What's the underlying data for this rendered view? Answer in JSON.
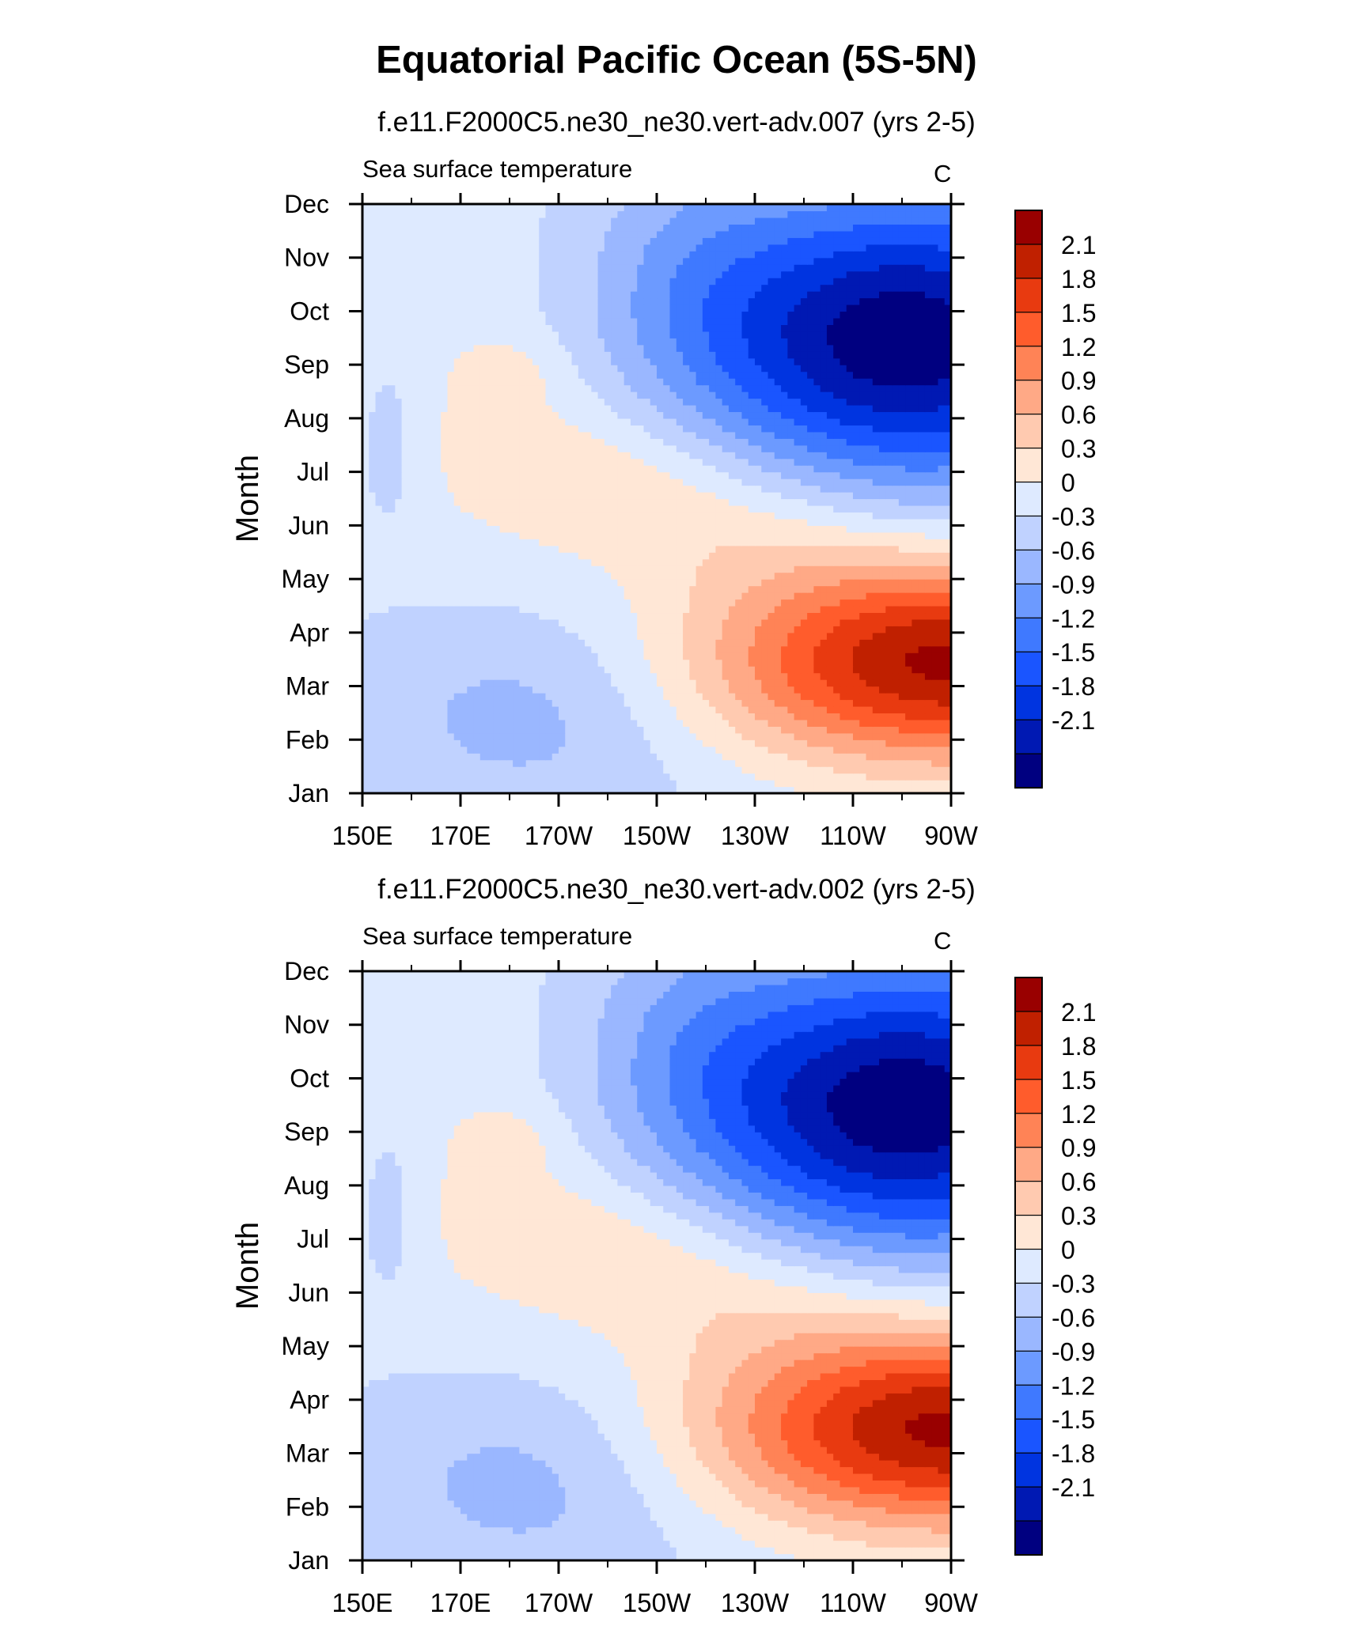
{
  "title": "Equatorial Pacific Ocean (5S-5N)",
  "colors": {
    "levels": [
      "#000080",
      "#0019b3",
      "#0034e0",
      "#1a55ff",
      "#3f79ff",
      "#6c9aff",
      "#9ab7ff",
      "#c0d2ff",
      "#deeaff",
      "#ffe7d6",
      "#ffcab0",
      "#ffa986",
      "#ff8356",
      "#ff5c2c",
      "#e83a10",
      "#c02000",
      "#990000"
    ],
    "contour_labels": [
      "-2.1",
      "-1.8",
      "-1.5",
      "-1.2",
      "-0.9",
      "-0.6",
      "-0.3",
      "0",
      "0.3",
      "0.6",
      "0.9",
      "1.2",
      "1.5",
      "1.8",
      "2.1"
    ]
  },
  "chart_data": [
    {
      "type": "heatmap",
      "title": "f.e11.F2000C5.ne30_ne30.vert-adv.007 (yrs 2-5)",
      "variable": "Sea surface temperature",
      "units": "C",
      "ylabel": "Month",
      "xticks": [
        "150E",
        "170E",
        "170W",
        "150W",
        "130W",
        "110W",
        "90W"
      ],
      "yticks": [
        "Jan",
        "Feb",
        "Mar",
        "Apr",
        "May",
        "Jun",
        "Jul",
        "Aug",
        "Sep",
        "Oct",
        "Nov",
        "Dec"
      ],
      "colorbar_labels": [
        "2.1",
        "1.8",
        "1.5",
        "1.2",
        "0.9",
        "0.6",
        "0.3",
        "0",
        "-0.3",
        "-0.6",
        "-0.9",
        "-1.2",
        "-1.5",
        "-1.8",
        "-2.1"
      ],
      "x_range": [
        "150E",
        "90W"
      ],
      "y_range": [
        "Jan",
        "Dec"
      ],
      "features": {
        "warm_max_month": "Mar-Apr",
        "warm_max_lon": "95W",
        "warm_max_value": 2.2,
        "cold_min_month": "Sep",
        "cold_min_lon": "95W",
        "cold_min_value": -2.1
      }
    },
    {
      "type": "heatmap",
      "title": "f.e11.F2000C5.ne30_ne30.vert-adv.002 (yrs 2-5)",
      "variable": "Sea surface temperature",
      "units": "C",
      "ylabel": "Month",
      "xticks": [
        "150E",
        "170E",
        "170W",
        "150W",
        "130W",
        "110W",
        "90W"
      ],
      "yticks": [
        "Jan",
        "Feb",
        "Mar",
        "Apr",
        "May",
        "Jun",
        "Jul",
        "Aug",
        "Sep",
        "Oct",
        "Nov",
        "Dec"
      ],
      "colorbar_labels": [
        "2.1",
        "1.8",
        "1.5",
        "1.2",
        "0.9",
        "0.6",
        "0.3",
        "0",
        "-0.3",
        "-0.6",
        "-0.9",
        "-1.2",
        "-1.5",
        "-1.8",
        "-2.1"
      ],
      "x_range": [
        "150E",
        "90W"
      ],
      "y_range": [
        "Jan",
        "Dec"
      ],
      "features": {
        "warm_max_month": "Mar-Apr",
        "warm_max_lon": "95W",
        "warm_max_value": 2.2,
        "cold_min_month": "Sep",
        "cold_min_lon": "95W",
        "cold_min_value": -2.1
      }
    }
  ]
}
